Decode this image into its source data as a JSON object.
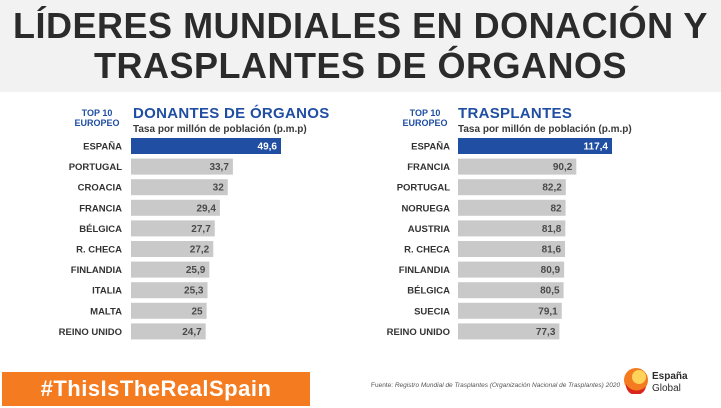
{
  "header": {
    "title_line1": "LÍDERES MUNDIALES EN DONACIÓN Y",
    "title_line2": "TRASPLANTES DE ÓRGANOS"
  },
  "left_chart": {
    "badge_line1": "TOP 10",
    "badge_line2": "EUROPEO",
    "title": "DONANTES DE ÓRGANOS",
    "subtitle": "Tasa por millón de población (p.m.p)"
  },
  "right_chart": {
    "badge_line1": "TOP 10",
    "badge_line2": "EUROPEO",
    "title": "TRASPLANTES",
    "subtitle": "Tasa por millón de población (p.m.p)"
  },
  "footer": {
    "hashtag": "#ThisIsTheRealSpain",
    "source_prefix": "Fuente: ",
    "source_text": "Registro Mundial de Trasplantes (Organización Nacional de Trasplantes) 2020",
    "logo_line1": "España",
    "logo_line2": "Global"
  },
  "colors": {
    "highlight": "#1f4ea3",
    "bar": "#c9c9c9",
    "accent": "#f47b20"
  },
  "chart_data": [
    {
      "type": "bar",
      "orientation": "horizontal",
      "title": "DONANTES DE ÓRGANOS",
      "subtitle": "Tasa por millón de población (p.m.p)",
      "categories": [
        "ESPAÑA",
        "PORTUGAL",
        "CROACIA",
        "FRANCIA",
        "BÉLGICA",
        "R. CHECA",
        "FINLANDIA",
        "ITALIA",
        "MALTA",
        "REINO UNIDO"
      ],
      "values": [
        49.6,
        33.7,
        32,
        29.4,
        27.7,
        27.2,
        25.9,
        25.3,
        25,
        24.7
      ],
      "value_labels": [
        "49,6",
        "33,7",
        "32",
        "29,4",
        "27,7",
        "27,2",
        "25,9",
        "25,3",
        "25",
        "24,7"
      ],
      "highlight_index": 0,
      "xlim": [
        0,
        49.6
      ]
    },
    {
      "type": "bar",
      "orientation": "horizontal",
      "title": "TRASPLANTES",
      "subtitle": "Tasa por millón de población (p.m.p)",
      "categories": [
        "ESPAÑA",
        "FRANCIA",
        "PORTUGAL",
        "NORUEGA",
        "AUSTRIA",
        "R. CHECA",
        "FINLANDIA",
        "BÉLGICA",
        "SUECIA",
        "REINO UNIDO"
      ],
      "values": [
        117.4,
        90.2,
        82.2,
        82,
        81.8,
        81.6,
        80.9,
        80.5,
        79.1,
        77.3
      ],
      "value_labels": [
        "117,4",
        "90,2",
        "82,2",
        "82",
        "81,8",
        "81,6",
        "80,9",
        "80,5",
        "79,1",
        "77,3"
      ],
      "highlight_index": 0,
      "xlim": [
        0,
        117.4
      ]
    }
  ]
}
